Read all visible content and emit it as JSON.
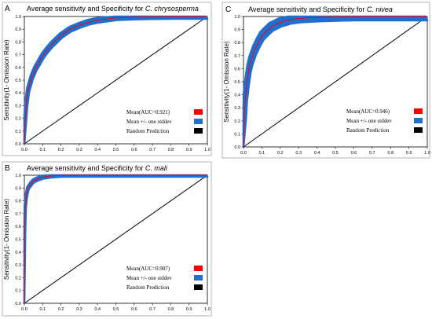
{
  "chart_data": [
    {
      "panel": "A",
      "type": "line",
      "title_prefix": "Average sensitivity and Specificity for ",
      "title_species": "C. chrysosperma",
      "ylabel": "Sensitivity(1- Omission Rate)",
      "xlabel": "",
      "xlim": [
        0,
        1
      ],
      "ylim": [
        0,
        1
      ],
      "x_ticks": [
        "0.0",
        "0.1",
        "0.2",
        "0.3",
        "0.4",
        "0.5",
        "0.6",
        "0.7",
        "0.8",
        "0.9",
        "1.0"
      ],
      "y_ticks": [
        "0.0",
        "0.1",
        "0.2",
        "0.3",
        "0.4",
        "0.5",
        "0.6",
        "0.7",
        "0.8",
        "0.9",
        "1.0"
      ],
      "grid": false,
      "legend_position": "bottom-right",
      "series": [
        {
          "name": "Mean(AUC=0.921)",
          "color": "#ff0000",
          "x": [
            0,
            0.005,
            0.01,
            0.02,
            0.04,
            0.06,
            0.08,
            0.1,
            0.12,
            0.15,
            0.2,
            0.25,
            0.3,
            0.35,
            0.4,
            0.5,
            0.6,
            0.7,
            0.8,
            0.9,
            1.0
          ],
          "y": [
            0,
            0.2,
            0.3,
            0.42,
            0.52,
            0.59,
            0.64,
            0.69,
            0.73,
            0.78,
            0.85,
            0.9,
            0.93,
            0.955,
            0.97,
            0.99,
            0.995,
            0.998,
            1.0,
            1.0,
            1.0
          ]
        },
        {
          "name": "Mean +/- one stddev",
          "color": "#1f6fd1",
          "band": 0.018
        },
        {
          "name": "Random Prediction",
          "color": "#000000",
          "x": [
            0,
            1
          ],
          "y": [
            0,
            1
          ]
        }
      ]
    },
    {
      "panel": "B",
      "type": "line",
      "title_prefix": "Average sensitivity and Specificity for ",
      "title_species": "C. mali",
      "ylabel": "Sensitivity(1- Omission Rate)",
      "xlabel": "",
      "xlim": [
        0,
        1
      ],
      "ylim": [
        0,
        1
      ],
      "x_ticks": [
        "0.0",
        "0.1",
        "0.2",
        "0.3",
        "0.4",
        "0.5",
        "0.6",
        "0.7",
        "0.8",
        "0.9",
        "1.0"
      ],
      "y_ticks": [
        "0.0",
        "0.1",
        "0.2",
        "0.3",
        "0.4",
        "0.5",
        "0.6",
        "0.7",
        "0.8",
        "0.9",
        "1.0"
      ],
      "grid": false,
      "legend_position": "bottom-right",
      "series": [
        {
          "name": "Mean(AUC=0.987)",
          "color": "#ff0000",
          "x": [
            0,
            0.002,
            0.005,
            0.01,
            0.015,
            0.02,
            0.03,
            0.04,
            0.05,
            0.07,
            0.1,
            0.15,
            0.2,
            0.3,
            0.5,
            0.7,
            1.0
          ],
          "y": [
            0,
            0.6,
            0.75,
            0.83,
            0.87,
            0.9,
            0.92,
            0.94,
            0.955,
            0.97,
            0.985,
            0.995,
            1.0,
            1.0,
            1.0,
            1.0,
            1.0
          ]
        },
        {
          "name": "Mean +/- one stddev",
          "color": "#1f6fd1",
          "band": 0.012
        },
        {
          "name": "Random Prediction",
          "color": "#000000",
          "x": [
            0,
            1
          ],
          "y": [
            0,
            1
          ]
        }
      ]
    },
    {
      "panel": "C",
      "type": "line",
      "title_prefix": "Average sensitivity and Specificity for ",
      "title_species": "C. nivea",
      "ylabel": "Sensitivity(1- Omission Rate)",
      "xlabel": "",
      "xlim": [
        0,
        1
      ],
      "ylim": [
        0,
        1
      ],
      "x_ticks": [
        "0.0",
        "0.1",
        "0.2",
        "0.3",
        "0.4",
        "0.5",
        "0.6",
        "0.7",
        "0.8",
        "0.9",
        "1.0"
      ],
      "y_ticks": [
        "0.0",
        "0.1",
        "0.2",
        "0.3",
        "0.4",
        "0.5",
        "0.6",
        "0.7",
        "0.8",
        "0.9",
        "1.0"
      ],
      "grid": false,
      "legend_position": "bottom-right",
      "series": [
        {
          "name": "Mean(AUC=0.946)",
          "color": "#ff0000",
          "x": [
            0,
            0.005,
            0.01,
            0.02,
            0.03,
            0.04,
            0.06,
            0.08,
            0.1,
            0.12,
            0.15,
            0.2,
            0.25,
            0.3,
            0.4,
            0.5,
            0.6,
            0.7,
            0.8,
            1.0
          ],
          "y": [
            0,
            0.25,
            0.38,
            0.5,
            0.6,
            0.66,
            0.74,
            0.8,
            0.85,
            0.88,
            0.92,
            0.955,
            0.975,
            0.985,
            0.993,
            0.997,
            1.0,
            1.0,
            1.0,
            1.0
          ]
        },
        {
          "name": "Mean +/- one stddev",
          "color": "#1f6fd1",
          "band": 0.03
        },
        {
          "name": "Random Prediction",
          "color": "#000000",
          "x": [
            0,
            1
          ],
          "y": [
            0,
            1
          ]
        }
      ]
    }
  ]
}
